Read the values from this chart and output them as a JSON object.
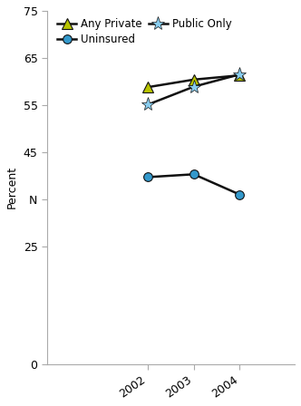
{
  "years": [
    2002,
    2003,
    2004
  ],
  "any_private": [
    58.8,
    60.4,
    61.3
  ],
  "public_only": [
    55.1,
    58.9,
    61.5
  ],
  "uninsured": [
    39.7,
    40.3,
    36.0
  ],
  "any_private_color": "#b8c400",
  "public_only_color": "#88ccee",
  "uninsured_color": "#3399cc",
  "line_color": "#111111",
  "ylabel": "Percent",
  "ylim": [
    0,
    75
  ],
  "ytick_positions": [
    0,
    25,
    35,
    45,
    55,
    65,
    75
  ],
  "ytick_labels": [
    "0",
    "25",
    "N",
    "45",
    "55",
    "65",
    "75"
  ],
  "xlim": [
    1999.8,
    2005.2
  ],
  "legend_any_private": "Any Private",
  "legend_public_only": "Public Only",
  "legend_uninsured": "Uninsured"
}
